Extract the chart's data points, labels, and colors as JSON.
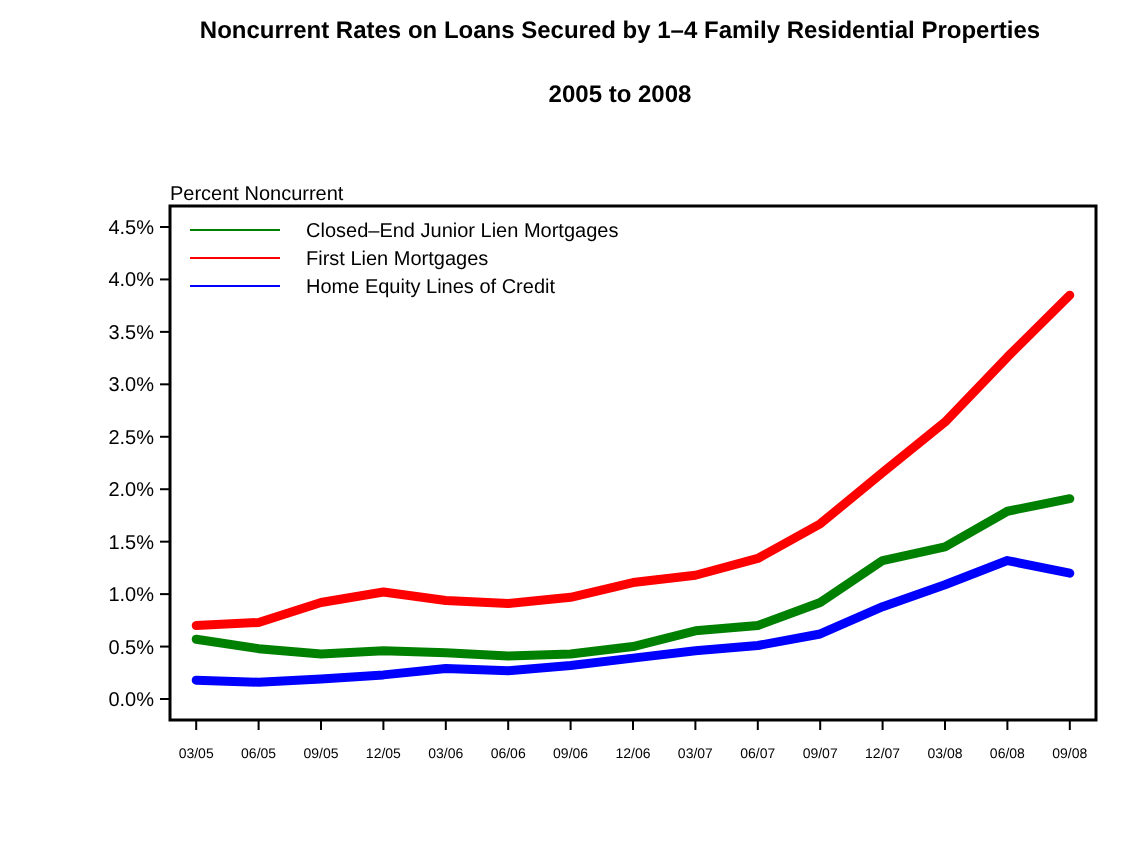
{
  "chart_data": {
    "type": "line",
    "title": "Noncurrent Rates on Loans Secured by 1–4 Family Residential Properties",
    "subtitle": "2005 to 2008",
    "ylabel": "Percent Noncurrent",
    "categories": [
      "03/05",
      "06/05",
      "09/05",
      "12/05",
      "03/06",
      "06/06",
      "09/06",
      "12/06",
      "03/07",
      "06/07",
      "09/07",
      "12/07",
      "03/08",
      "06/08",
      "09/08"
    ],
    "series": [
      {
        "name": "Closed–End Junior Lien Mortgages",
        "color": "#008000",
        "values": [
          0.57,
          0.48,
          0.43,
          0.46,
          0.44,
          0.41,
          0.43,
          0.5,
          0.65,
          0.7,
          0.92,
          1.32,
          1.45,
          1.79,
          1.91
        ]
      },
      {
        "name": "First Lien Mortgages",
        "color": "#ff0000",
        "values": [
          0.7,
          0.73,
          0.92,
          1.02,
          0.94,
          0.91,
          0.97,
          1.11,
          1.18,
          1.34,
          1.67,
          2.16,
          2.64,
          3.26,
          3.85
        ]
      },
      {
        "name": "Home Equity Lines of Credit",
        "color": "#0000ff",
        "values": [
          0.18,
          0.16,
          0.19,
          0.23,
          0.29,
          0.27,
          0.32,
          0.39,
          0.46,
          0.51,
          0.62,
          0.88,
          1.09,
          1.32,
          1.2
        ]
      }
    ],
    "ylim": [
      -0.2,
      4.7
    ],
    "yticks": [
      {
        "value": 0,
        "label": "0.0%"
      },
      {
        "value": 0.5,
        "label": "0.5%"
      },
      {
        "value": 1,
        "label": "1.0%"
      },
      {
        "value": 1.5,
        "label": "1.5%"
      },
      {
        "value": 2,
        "label": "2.0%"
      },
      {
        "value": 2.5,
        "label": "2.5%"
      },
      {
        "value": 3,
        "label": "3.0%"
      },
      {
        "value": 3.5,
        "label": "3.5%"
      },
      {
        "value": 4,
        "label": "4.0%"
      },
      {
        "value": 4.5,
        "label": "4.5%"
      }
    ],
    "grid": false,
    "legend": "top left",
    "line_style": "solid"
  }
}
